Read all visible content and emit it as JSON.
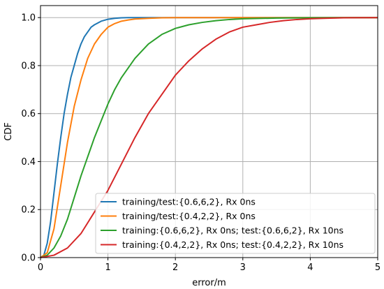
{
  "chart_data": {
    "type": "line",
    "xlabel": "error/m",
    "ylabel": "CDF",
    "xlim": [
      0,
      5
    ],
    "ylim": [
      0,
      1.05
    ],
    "x_ticks": [
      "0",
      "1",
      "2",
      "3",
      "4",
      "5"
    ],
    "y_ticks": [
      "0.0",
      "0.2",
      "0.4",
      "0.6",
      "0.8",
      "1.0"
    ],
    "grid": true,
    "legend_position": "bottom-right",
    "series": [
      {
        "name": "training/test:{0.6,6,2}, Rx 0ns",
        "color": "#1f77b4",
        "x": [
          0,
          0.05,
          0.1,
          0.15,
          0.2,
          0.25,
          0.3,
          0.35,
          0.4,
          0.45,
          0.5,
          0.55,
          0.6,
          0.65,
          0.7,
          0.75,
          0.8,
          0.9,
          1.0,
          1.1,
          1.2,
          1.3,
          1.5,
          2.0,
          3.0,
          4.0,
          5.0
        ],
        "y": [
          0,
          0.01,
          0.06,
          0.15,
          0.27,
          0.39,
          0.5,
          0.6,
          0.68,
          0.75,
          0.8,
          0.85,
          0.89,
          0.92,
          0.94,
          0.96,
          0.97,
          0.985,
          0.993,
          0.997,
          0.999,
          1.0,
          1.0,
          1.0,
          1.0,
          1.0,
          1.0
        ]
      },
      {
        "name": "training/test:{0.4,2,2}, Rx 0ns",
        "color": "#ff7f0e",
        "x": [
          0,
          0.1,
          0.2,
          0.3,
          0.4,
          0.5,
          0.6,
          0.7,
          0.8,
          0.9,
          1.0,
          1.1,
          1.2,
          1.3,
          1.4,
          1.6,
          1.8,
          2.0,
          2.5,
          3.0,
          4.0,
          5.0
        ],
        "y": [
          0,
          0.02,
          0.12,
          0.3,
          0.48,
          0.63,
          0.74,
          0.83,
          0.89,
          0.93,
          0.96,
          0.975,
          0.985,
          0.99,
          0.994,
          0.997,
          0.999,
          1.0,
          1.0,
          1.0,
          1.0,
          1.0
        ]
      },
      {
        "name": "training:{0.6,6,2}, Rx 0ns; test:{0.6,6,2}, Rx 10ns",
        "color": "#2ca02c",
        "x": [
          0,
          0.1,
          0.2,
          0.3,
          0.4,
          0.5,
          0.6,
          0.7,
          0.8,
          0.9,
          1.0,
          1.1,
          1.2,
          1.3,
          1.4,
          1.5,
          1.6,
          1.8,
          2.0,
          2.2,
          2.4,
          2.6,
          2.8,
          3.0,
          3.5,
          4.0,
          4.5,
          5.0
        ],
        "y": [
          0,
          0.01,
          0.04,
          0.09,
          0.16,
          0.25,
          0.34,
          0.42,
          0.5,
          0.57,
          0.64,
          0.7,
          0.75,
          0.79,
          0.83,
          0.86,
          0.89,
          0.93,
          0.955,
          0.97,
          0.98,
          0.987,
          0.992,
          0.995,
          0.998,
          0.999,
          1.0,
          1.0
        ]
      },
      {
        "name": "training:{0.4,2,2}, Rx 0ns; test:{0.4,2,2}, Rx 10ns",
        "color": "#d62728",
        "x": [
          0,
          0.2,
          0.4,
          0.6,
          0.8,
          1.0,
          1.2,
          1.4,
          1.6,
          1.8,
          2.0,
          2.2,
          2.4,
          2.6,
          2.8,
          3.0,
          3.2,
          3.4,
          3.6,
          3.8,
          4.0,
          4.2,
          4.5,
          5.0
        ],
        "y": [
          0,
          0.01,
          0.04,
          0.1,
          0.19,
          0.28,
          0.39,
          0.5,
          0.6,
          0.68,
          0.76,
          0.82,
          0.87,
          0.91,
          0.94,
          0.96,
          0.97,
          0.98,
          0.987,
          0.992,
          0.995,
          0.997,
          0.999,
          1.0
        ]
      }
    ]
  }
}
